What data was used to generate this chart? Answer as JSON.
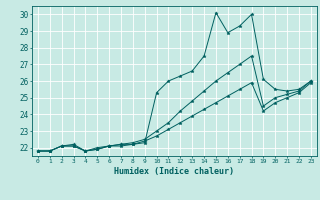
{
  "xlabel": "Humidex (Indice chaleur)",
  "ylabel": "",
  "xlim": [
    -0.5,
    23.5
  ],
  "ylim": [
    21.5,
    30.5
  ],
  "xticks": [
    0,
    1,
    2,
    3,
    4,
    5,
    6,
    7,
    8,
    9,
    10,
    11,
    12,
    13,
    14,
    15,
    16,
    17,
    18,
    19,
    20,
    21,
    22,
    23
  ],
  "yticks": [
    22,
    23,
    24,
    25,
    26,
    27,
    28,
    29,
    30
  ],
  "bg_color": "#c8eae4",
  "line_color": "#006060",
  "grid_color": "#ffffff",
  "series": [
    [
      21.8,
      21.8,
      22.1,
      22.2,
      21.8,
      22.0,
      22.1,
      22.2,
      22.2,
      22.3,
      25.3,
      26.0,
      26.3,
      26.6,
      27.5,
      30.1,
      28.9,
      29.3,
      30.0,
      26.1,
      25.5,
      25.4,
      25.5,
      26.0
    ],
    [
      21.8,
      21.8,
      22.1,
      22.1,
      21.8,
      21.9,
      22.1,
      22.2,
      22.3,
      22.5,
      23.0,
      23.5,
      24.2,
      24.8,
      25.4,
      26.0,
      26.5,
      27.0,
      27.5,
      24.5,
      25.0,
      25.2,
      25.4,
      26.0
    ],
    [
      21.8,
      21.8,
      22.1,
      22.1,
      21.8,
      21.9,
      22.1,
      22.1,
      22.2,
      22.4,
      22.7,
      23.1,
      23.5,
      23.9,
      24.3,
      24.7,
      25.1,
      25.5,
      25.9,
      24.2,
      24.7,
      25.0,
      25.3,
      25.9
    ]
  ]
}
